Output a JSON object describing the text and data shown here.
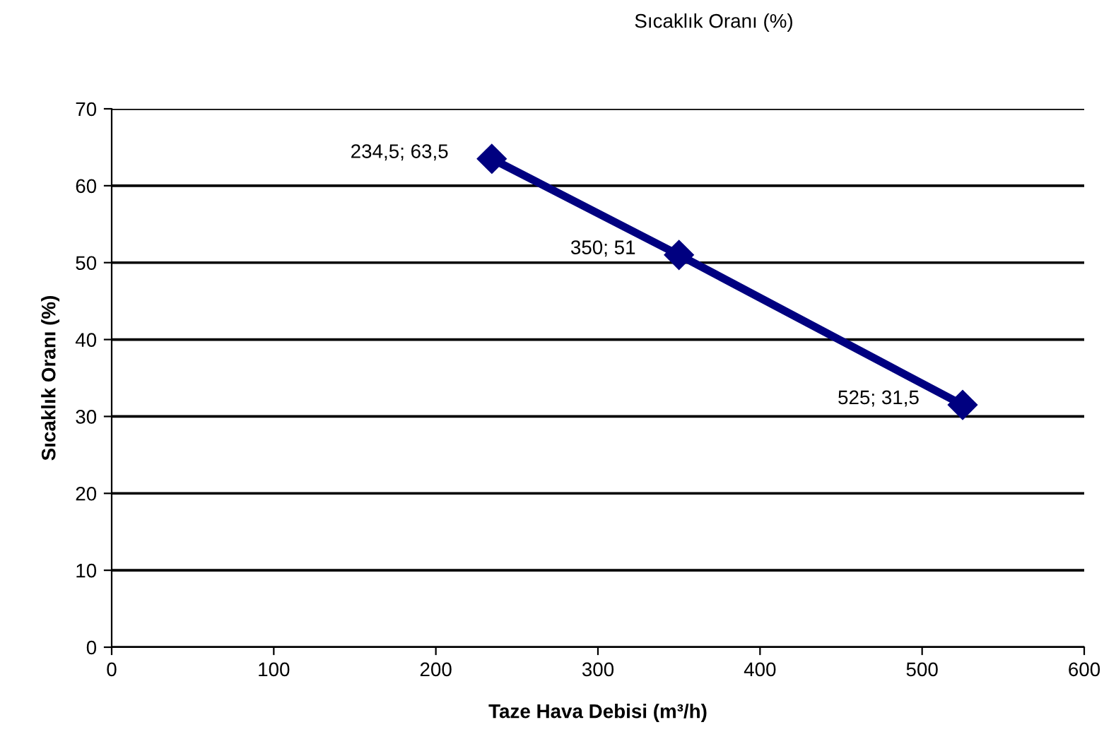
{
  "chart_data": {
    "type": "line",
    "title": "Sıcaklık Oranı (%)",
    "xlabel": "Taze Hava Debisi (m³/h)",
    "ylabel": "Sıcaklık Oranı (%)",
    "series": [
      {
        "color": "#000080",
        "x": [
          234.5,
          350,
          525
        ],
        "values": [
          63.5,
          51,
          31.5
        ],
        "value_labels": [
          "234,5; 63,5",
          "350; 51",
          "525; 31,5"
        ]
      }
    ],
    "xlim": [
      0,
      600
    ],
    "xticks": [
      0,
      100,
      200,
      300,
      400,
      500,
      600
    ],
    "ylim": [
      0,
      70
    ],
    "yticks": [
      0,
      10,
      20,
      30,
      40,
      50,
      60,
      70
    ],
    "grid": "y",
    "marker": "diamond",
    "line_style": "solid",
    "legend": false
  }
}
